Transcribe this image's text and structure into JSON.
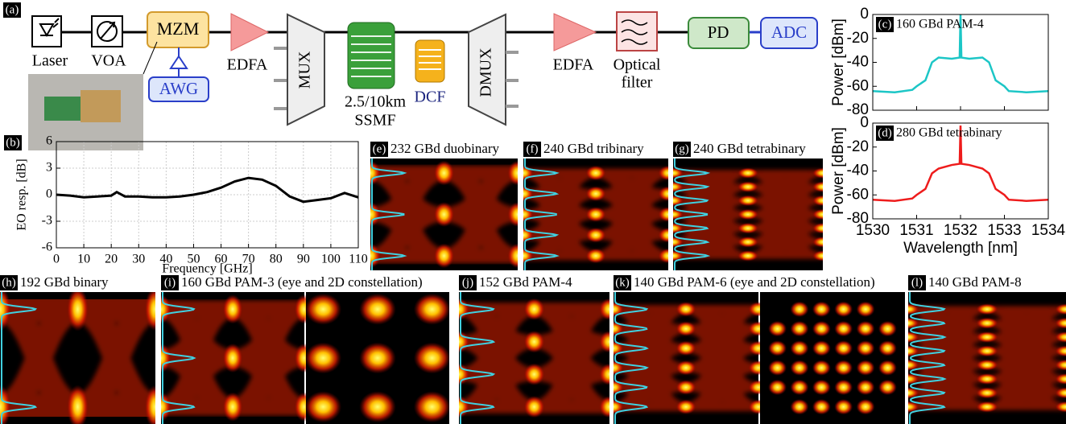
{
  "diagram": {
    "label": "(a)",
    "laser": "Laser",
    "voa": "VOA",
    "mzm": "MZM",
    "awg": "AWG",
    "edfa1": "EDFA",
    "mux": "MUX",
    "ssmf_line1": "2.5/10km",
    "ssmf_line2": "SSMF",
    "dcf": "DCF",
    "dmux": "DMUX",
    "edfa2": "EDFA",
    "filter_line1": "Optical",
    "filter_line2": "filter",
    "pd": "PD",
    "adc": "ADC"
  },
  "chart_data": [
    {
      "type": "line",
      "label": "(b)",
      "ylabel": "EO resp. [dB]",
      "xlabel": "Frequency [GHz]",
      "color": "#000000",
      "grid": true,
      "x": [
        0,
        5,
        10,
        15,
        20,
        22,
        25,
        30,
        35,
        40,
        45,
        50,
        55,
        60,
        65,
        70,
        75,
        80,
        85,
        90,
        95,
        100,
        105,
        110
      ],
      "values": [
        0,
        -0.1,
        -0.3,
        -0.2,
        -0.1,
        0.3,
        -0.2,
        -0.2,
        -0.3,
        -0.3,
        -0.2,
        0,
        0.3,
        0.8,
        1.5,
        1.9,
        1.7,
        1.0,
        -0.2,
        -0.8,
        -0.6,
        -0.4,
        0.2,
        -0.3
      ],
      "xlim": [
        0,
        110
      ],
      "ylim": [
        -6,
        6
      ],
      "xticks": [
        0,
        10,
        20,
        30,
        40,
        50,
        60,
        70,
        80,
        90,
        100,
        110
      ],
      "yticks": [
        -6,
        -3,
        0,
        3,
        6
      ]
    },
    {
      "type": "line",
      "label": "(c)",
      "title": "160 GBd PAM-4",
      "ylabel": "Power [dBm]",
      "color": "#1cc6c6",
      "grid": false,
      "x": [
        1530,
        1530.5,
        1530.9,
        1531.0,
        1531.2,
        1531.35,
        1531.5,
        1531.8,
        1531.98,
        1532,
        1532.02,
        1532.2,
        1532.5,
        1532.65,
        1532.8,
        1533,
        1533.1,
        1533.5,
        1534
      ],
      "values": [
        -64,
        -65,
        -63,
        -60,
        -55,
        -40,
        -36,
        -37,
        -36,
        0,
        -36,
        -37,
        -36,
        -40,
        -55,
        -60,
        -64,
        -65,
        -64
      ],
      "xlim": [
        1530,
        1534
      ],
      "ylim": [
        -80,
        0
      ],
      "xticks": [
        1530,
        1531,
        1532,
        1533,
        1534
      ],
      "yticks": [
        0,
        -20,
        -40,
        -60,
        -80
      ]
    },
    {
      "type": "line",
      "label": "(d)",
      "title": "280 GBd tetrabinary",
      "ylabel": "Power [dBm]",
      "xlabel": "Wavelength [nm]",
      "color": "#ee1c1c",
      "grid": false,
      "x": [
        1530,
        1530.5,
        1530.9,
        1531.0,
        1531.2,
        1531.35,
        1531.5,
        1531.8,
        1531.98,
        1532,
        1532.02,
        1532.2,
        1532.5,
        1532.65,
        1532.8,
        1533,
        1533.1,
        1533.5,
        1534
      ],
      "values": [
        -64,
        -65,
        -63,
        -60,
        -55,
        -42,
        -38,
        -35,
        -34,
        -2,
        -34,
        -35,
        -38,
        -42,
        -55,
        -60,
        -64,
        -65,
        -64
      ],
      "xlim": [
        1530,
        1534
      ],
      "ylim": [
        -80,
        0
      ],
      "xticks": [
        1530,
        1531,
        1532,
        1533,
        1534
      ],
      "yticks": [
        0,
        -20,
        -40,
        -60,
        -80
      ]
    }
  ],
  "eye_panels": [
    {
      "label": "(e)",
      "title": "232 GBd duobinary"
    },
    {
      "label": "(f)",
      "title": "240 GBd tribinary"
    },
    {
      "label": "(g)",
      "title": "240 GBd tetrabinary"
    },
    {
      "label": "(h)",
      "title": "192 GBd binary"
    },
    {
      "label": "(i)",
      "title": "160 GBd PAM-3 (eye and 2D constellation)"
    },
    {
      "label": "(j)",
      "title": "152 GBd PAM-4"
    },
    {
      "label": "(k)",
      "title": "140 GBd PAM-6 (eye and 2D constellation)"
    },
    {
      "label": "(l)",
      "title": "140 GBd PAM-8"
    }
  ]
}
